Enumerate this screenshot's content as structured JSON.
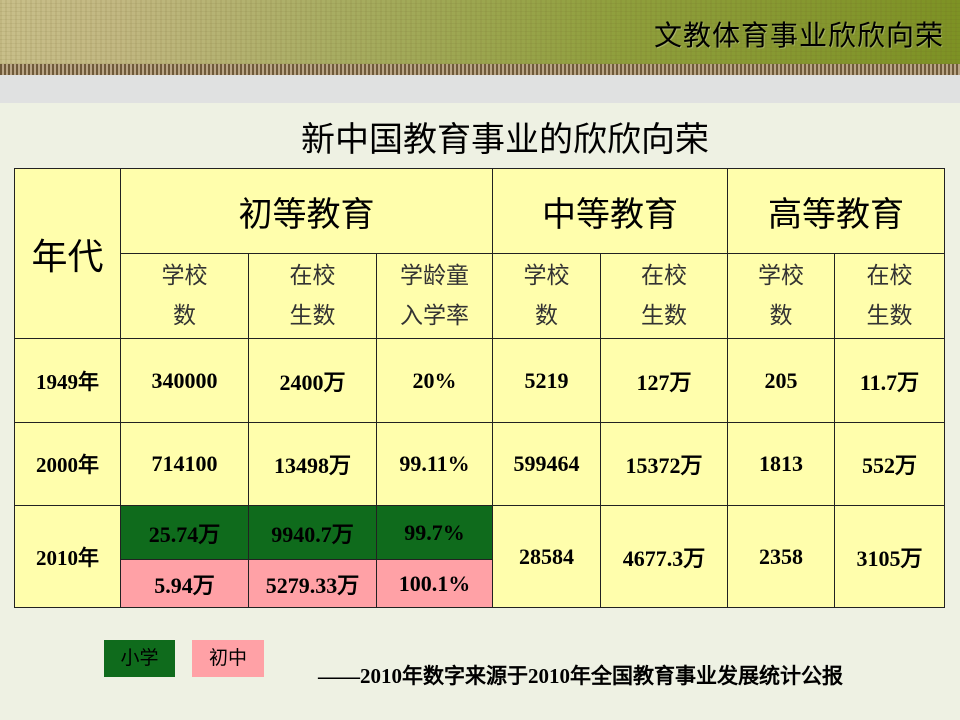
{
  "banner": {
    "title": "文教体育事业欣欣向荣"
  },
  "slide": {
    "title": "新中国教育事业的欣欣向荣"
  },
  "table": {
    "year_header": "年代",
    "groups": [
      "初等教育",
      "中等教育",
      "高等教育"
    ],
    "subheaders": [
      [
        "学校",
        "数"
      ],
      [
        "在校",
        "生数"
      ],
      [
        "学龄童",
        "入学率"
      ],
      [
        "学校",
        "数"
      ],
      [
        "在校",
        "生数"
      ],
      [
        "学校",
        "数"
      ],
      [
        "在校",
        "生数"
      ]
    ],
    "rows": [
      {
        "year": "1949年",
        "values": [
          "340000",
          "2400万",
          "20%",
          "5219",
          "127万",
          "205",
          "11.7万"
        ]
      },
      {
        "year": "2000年",
        "values": [
          "714100",
          "13498万",
          "99.11%",
          "599464",
          "15372万",
          "1813",
          "552万"
        ]
      },
      {
        "year": "2010年",
        "primary": [
          "25.74万",
          "9940.7万",
          "99.7%"
        ],
        "junior": [
          "5.94万",
          "5279.33万",
          "100.1%"
        ],
        "values": [
          "28584",
          "4677.3万",
          "2358",
          "3105万"
        ]
      }
    ]
  },
  "legend": {
    "green_label": "小学",
    "pink_label": "初中",
    "green_color": "#0f6b1c",
    "pink_color": "#ffa1a6"
  },
  "source": "——2010年数字来源于2010年全国教育事业发展统计公报"
}
